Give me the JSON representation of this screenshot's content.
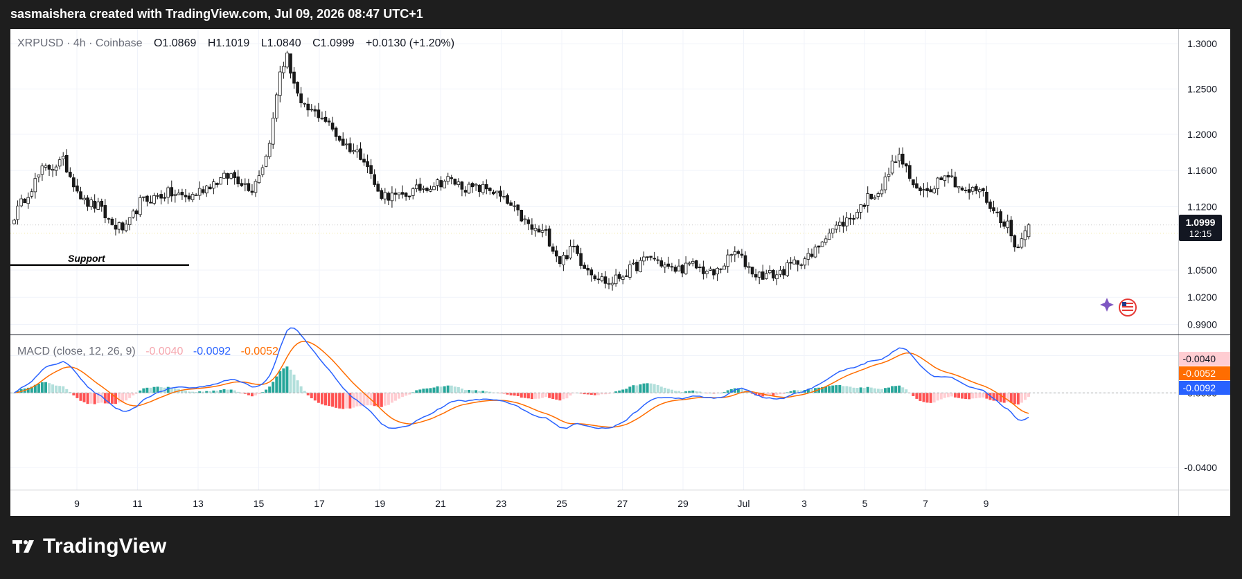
{
  "banner": "sasmaishera created with TradingView.com, Jul 09, 2026 08:47 UTC+1",
  "brand": {
    "name": "TradingView"
  },
  "header": {
    "symbol": "XRPUSD · 4h · Coinbase",
    "o_label": "O",
    "o_value": "1.0869",
    "h_label": "H",
    "h_value": "1.1019",
    "l_label": "L",
    "l_value": "1.0840",
    "c_label": "C",
    "c_value": "1.0999",
    "change": "+0.0130 (+1.20%)"
  },
  "annotation": {
    "support_label": "Support",
    "support_price": 1.0555
  },
  "price_tag": {
    "value": "1.0999",
    "countdown": "12:15"
  },
  "macd_header": {
    "title": "MACD (close, 12, 26, 9)",
    "hist": "-0.0040",
    "macd": "-0.0092",
    "signal": "-0.0052"
  },
  "macd_tags": {
    "hist": "-0.0040",
    "signal": "-0.0052",
    "macd": "-0.0092"
  },
  "colors": {
    "up": "#ffffff",
    "down": "#1a1a1a",
    "wick": "#111111",
    "macd_line": "#2962ff",
    "signal_line": "#ff6d00",
    "hist_up_strong": "#26a69a",
    "hist_up_weak": "#b2dfdb",
    "hist_down_strong": "#ff5252",
    "hist_down_weak": "#ffcdd2",
    "grid": "#f0f3fa"
  },
  "chart_data": [
    {
      "type": "candlestick",
      "title": "XRPUSD · 4h · Coinbase",
      "interval": "4h",
      "ohlc_last": {
        "open": 1.0869,
        "high": 1.1019,
        "low": 1.084,
        "close": 1.0999
      },
      "x_tick_labels": [
        "9",
        "11",
        "13",
        "15",
        "17",
        "19",
        "21",
        "23",
        "25",
        "27",
        "29",
        "Jul",
        "3",
        "5",
        "7",
        "9"
      ],
      "y_tick_labels": [
        "1.3000",
        "1.2500",
        "1.2000",
        "1.1600",
        "1.1200",
        "1.0500",
        "1.0200",
        "0.9900"
      ],
      "ylim": [
        0.985,
        1.31
      ],
      "anchors": [
        [
          0,
          1.11
        ],
        [
          3,
          1.13
        ],
        [
          8,
          1.16
        ],
        [
          14,
          1.17
        ],
        [
          20,
          1.125
        ],
        [
          24,
          1.12
        ],
        [
          28,
          1.1
        ],
        [
          32,
          1.095
        ],
        [
          36,
          1.125
        ],
        [
          44,
          1.135
        ],
        [
          50,
          1.13
        ],
        [
          56,
          1.145
        ],
        [
          62,
          1.155
        ],
        [
          68,
          1.14
        ],
        [
          72,
          1.175
        ],
        [
          74,
          1.215
        ],
        [
          76,
          1.27
        ],
        [
          78,
          1.285
        ],
        [
          82,
          1.23
        ],
        [
          88,
          1.22
        ],
        [
          94,
          1.19
        ],
        [
          100,
          1.175
        ],
        [
          104,
          1.135
        ],
        [
          110,
          1.13
        ],
        [
          116,
          1.14
        ],
        [
          124,
          1.15
        ],
        [
          130,
          1.14
        ],
        [
          136,
          1.14
        ],
        [
          142,
          1.12
        ],
        [
          148,
          1.095
        ],
        [
          152,
          1.09
        ],
        [
          156,
          1.06
        ],
        [
          160,
          1.075
        ],
        [
          162,
          1.06
        ],
        [
          166,
          1.045
        ],
        [
          170,
          1.035
        ],
        [
          176,
          1.05
        ],
        [
          182,
          1.065
        ],
        [
          188,
          1.05
        ],
        [
          194,
          1.055
        ],
        [
          200,
          1.045
        ],
        [
          206,
          1.07
        ],
        [
          212,
          1.045
        ],
        [
          218,
          1.045
        ],
        [
          224,
          1.06
        ],
        [
          228,
          1.065
        ],
        [
          232,
          1.09
        ],
        [
          236,
          1.1
        ],
        [
          240,
          1.11
        ],
        [
          244,
          1.13
        ],
        [
          248,
          1.14
        ],
        [
          252,
          1.175
        ],
        [
          254,
          1.17
        ],
        [
          258,
          1.135
        ],
        [
          262,
          1.14
        ],
        [
          266,
          1.16
        ],
        [
          272,
          1.135
        ],
        [
          276,
          1.14
        ],
        [
          280,
          1.115
        ],
        [
          284,
          1.1
        ],
        [
          286,
          1.075
        ],
        [
          288,
          1.085
        ],
        [
          290,
          1.0999
        ]
      ],
      "support_level": 1.0555,
      "last_close": 1.0999
    },
    {
      "type": "line+bar",
      "title": "MACD (close, 12, 26, 9)",
      "series": [
        {
          "name": "MACD",
          "last": -0.0092
        },
        {
          "name": "Signal",
          "last": -0.0052
        },
        {
          "name": "Histogram",
          "last": -0.004
        }
      ],
      "y_tick_labels": [
        "0.0200",
        "0.0000",
        "-0.0400"
      ],
      "ylim": [
        -0.052,
        0.031
      ]
    }
  ]
}
